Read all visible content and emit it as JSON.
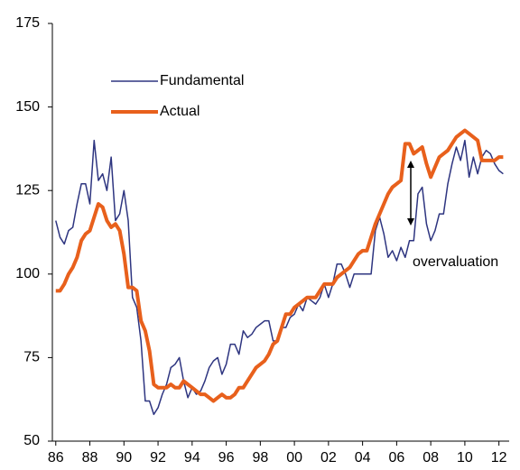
{
  "chart_data": {
    "type": "line",
    "x": [
      1986,
      1986.25,
      1986.5,
      1986.75,
      1987,
      1987.25,
      1987.5,
      1987.75,
      1988,
      1988.25,
      1988.5,
      1988.75,
      1989,
      1989.25,
      1989.5,
      1989.75,
      1990,
      1990.25,
      1990.5,
      1990.75,
      1991,
      1991.25,
      1991.5,
      1991.75,
      1992,
      1992.25,
      1992.5,
      1992.75,
      1993,
      1993.25,
      1993.5,
      1993.75,
      1994,
      1994.25,
      1994.5,
      1994.75,
      1995,
      1995.25,
      1995.5,
      1995.75,
      1996,
      1996.25,
      1996.5,
      1996.75,
      1997,
      1997.25,
      1997.5,
      1997.75,
      1998,
      1998.25,
      1998.5,
      1998.75,
      1999,
      1999.25,
      1999.5,
      1999.75,
      2000,
      2000.25,
      2000.5,
      2000.75,
      2001,
      2001.25,
      2001.5,
      2001.75,
      2002,
      2002.25,
      2002.5,
      2002.75,
      2003,
      2003.25,
      2003.5,
      2003.75,
      2004,
      2004.25,
      2004.5,
      2004.75,
      2005,
      2005.25,
      2005.5,
      2005.75,
      2006,
      2006.25,
      2006.5,
      2006.75,
      2007,
      2007.25,
      2007.5,
      2007.75,
      2008,
      2008.25,
      2008.5,
      2008.75,
      2009,
      2009.25,
      2009.5,
      2009.75,
      2010,
      2010.25,
      2010.5,
      2010.75,
      2011,
      2011.25,
      2011.5,
      2011.75,
      2012,
      2012.25
    ],
    "series": [
      {
        "name": "Fundamental",
        "color": "#2e3580",
        "width": 1.5,
        "values": [
          116,
          111,
          109,
          113,
          114,
          121,
          127,
          127,
          121,
          140,
          128,
          130,
          125,
          135,
          116,
          118,
          125,
          116,
          93,
          90,
          80,
          62,
          62,
          58,
          60,
          64,
          67,
          72,
          73,
          75,
          68,
          63,
          66,
          64,
          65,
          68,
          72,
          74,
          75,
          70,
          73,
          79,
          79,
          76,
          83,
          81,
          82,
          84,
          85,
          86,
          86,
          80,
          80,
          84,
          84,
          87,
          88,
          91,
          89,
          93,
          92,
          91,
          93,
          97,
          93,
          97,
          103,
          103,
          100,
          96,
          100,
          100,
          100,
          100,
          100,
          113,
          117,
          112,
          105,
          107,
          104,
          108,
          105,
          110,
          110,
          124,
          126,
          115,
          110,
          113,
          118,
          118,
          127,
          133,
          138,
          134,
          140,
          129,
          135,
          130,
          135,
          137,
          136,
          133,
          131,
          130
        ]
      },
      {
        "name": "Actual",
        "color": "#e8601c",
        "width": 4,
        "values": [
          95,
          95,
          97,
          100,
          102,
          105,
          110,
          112,
          113,
          117,
          121,
          120,
          116,
          114,
          115,
          113,
          106,
          96,
          96,
          95,
          86,
          83,
          77,
          67,
          66,
          66,
          66,
          67,
          66,
          66,
          68,
          67,
          66,
          65,
          64,
          64,
          63,
          62,
          63,
          64,
          63,
          63,
          64,
          66,
          66,
          68,
          70,
          72,
          73,
          74,
          76,
          79,
          80,
          84,
          88,
          88,
          90,
          91,
          92,
          93,
          93,
          93,
          95,
          97,
          97,
          97,
          99,
          100,
          101,
          102,
          104,
          106,
          107,
          107,
          111,
          115,
          118,
          121,
          124,
          126,
          127,
          128,
          139,
          139,
          136,
          137,
          138,
          133,
          129,
          132,
          135,
          136,
          137,
          139,
          141,
          142,
          143,
          142,
          141,
          140,
          134,
          134,
          134,
          134,
          135,
          135
        ]
      }
    ],
    "xlim": [
      1985.8,
      2012.6
    ],
    "xticks": [
      {
        "value": 1986,
        "label": "86"
      },
      {
        "value": 1988,
        "label": "88"
      },
      {
        "value": 1990,
        "label": "90"
      },
      {
        "value": 1992,
        "label": "92"
      },
      {
        "value": 1994,
        "label": "94"
      },
      {
        "value": 1996,
        "label": "96"
      },
      {
        "value": 1998,
        "label": "98"
      },
      {
        "value": 2000,
        "label": "00"
      },
      {
        "value": 2002,
        "label": "02"
      },
      {
        "value": 2004,
        "label": "04"
      },
      {
        "value": 2006,
        "label": "06"
      },
      {
        "value": 2008,
        "label": "08"
      },
      {
        "value": 2010,
        "label": "10"
      },
      {
        "value": 2012,
        "label": "12"
      }
    ],
    "ylim": [
      50,
      175
    ],
    "yticks": [
      50,
      75,
      100,
      125,
      150,
      175
    ],
    "grid": false,
    "legend": "upper left",
    "annotation": "overvaluation"
  }
}
